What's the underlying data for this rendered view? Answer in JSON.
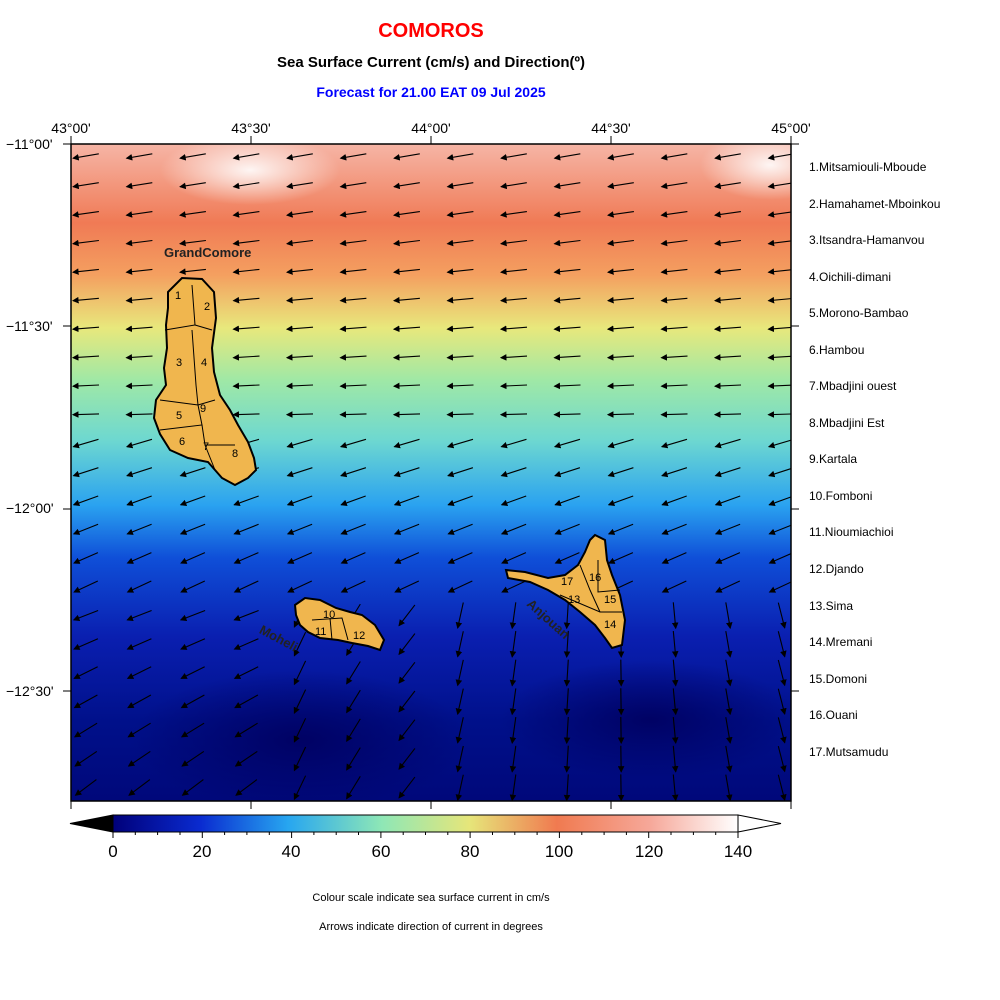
{
  "title": "COMOROS",
  "subtitle": "Sea Surface Current (cm/s) and Direction(º)",
  "forecast": "Forecast for  21.00 EAT 09 Jul 2025",
  "lon_ticks": [
    "43°00'",
    "43°30'",
    "44°00'",
    "44°30'",
    "45°00'"
  ],
  "lat_ticks": [
    "−11°00'",
    "−11°30'",
    "−12°00'",
    "−12°30'"
  ],
  "island_labels": {
    "grand_comore": "GrandComore",
    "moheli": "Moheli",
    "anjouan": "Anjouan"
  },
  "regions": [
    {
      "num": "1",
      "name": "1.Mitsamiouli-Mboude"
    },
    {
      "num": "2",
      "name": "2.Hamahamet-Mboinkou"
    },
    {
      "num": "3",
      "name": "3.Itsandra-Hamanvou"
    },
    {
      "num": "4",
      "name": "4.Oichili-dimani"
    },
    {
      "num": "5",
      "name": "5.Morono-Bambao"
    },
    {
      "num": "6",
      "name": "6.Hambou"
    },
    {
      "num": "7",
      "name": "7.Mbadjini ouest"
    },
    {
      "num": "8",
      "name": "8.Mbadjini Est"
    },
    {
      "num": "9",
      "name": "9.Kartala"
    },
    {
      "num": "10",
      "name": "10.Fomboni"
    },
    {
      "num": "11",
      "name": "11.Nioumiachioi"
    },
    {
      "num": "12",
      "name": "12.Djando"
    },
    {
      "num": "13",
      "name": "13.Sima"
    },
    {
      "num": "14",
      "name": "14.Mremani"
    },
    {
      "num": "15",
      "name": "15.Domoni"
    },
    {
      "num": "16",
      "name": "16.Ouani"
    },
    {
      "num": "17",
      "name": "17.Mutsamudu"
    }
  ],
  "colorbar": {
    "labels": [
      "0",
      "20",
      "40",
      "60",
      "80",
      "100",
      "120",
      "140"
    ],
    "min": 0,
    "max": 140,
    "colors": [
      "#00007a",
      "#0a2bd0",
      "#27a6f0",
      "#8ee7b6",
      "#e6e67a",
      "#f07a50",
      "#f6a89a",
      "#ffffff"
    ]
  },
  "notes": {
    "scale": "Colour scale indicate sea surface current in cm/s",
    "arrows": "Arrows indicate direction of current in degrees"
  },
  "colors": {
    "title": "#ff0000",
    "forecast": "#0000ff",
    "land": "#f0b64e"
  }
}
